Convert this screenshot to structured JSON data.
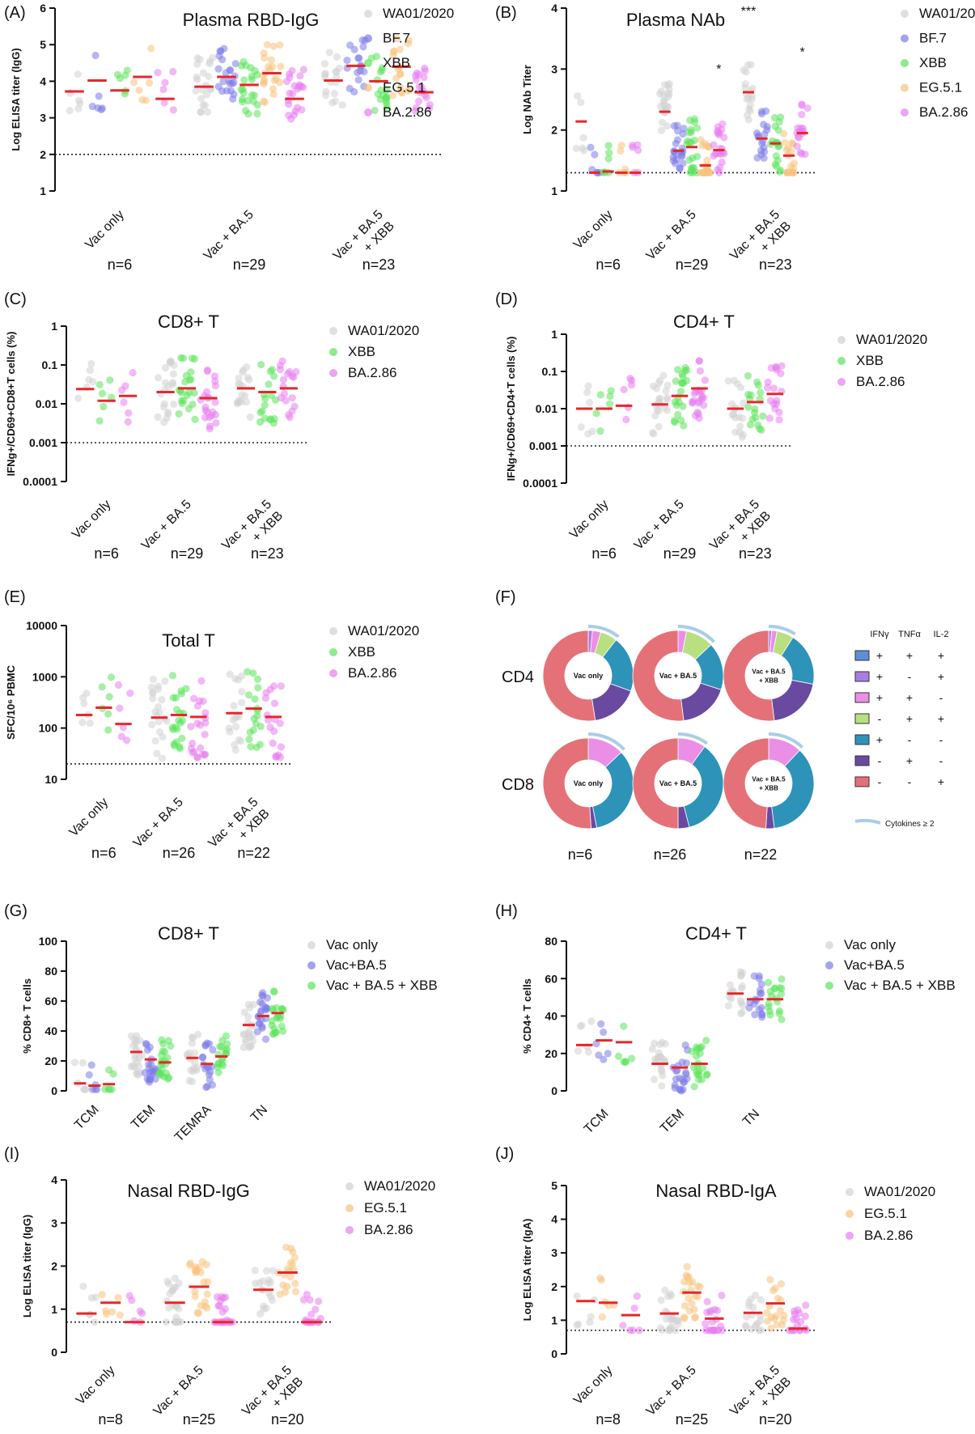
{
  "colors": {
    "WA01/2020": "#d2d2d2",
    "BF.7": "#7b7be8",
    "XBB": "#5be35b",
    "EG.5.1": "#f8c27d",
    "BA.2.86": "#e77ef0",
    "Vac only": "#d2d2d2",
    "Vac+BA.5": "#7b7be8",
    "Vac + BA.5 + XBB": "#5be35b",
    "median": "#e8262a",
    "pie_neg_pos_neg": "#e47177",
    "pie_ifng_only": "#2e93b8",
    "pie_tnfa_only": "#6a4aa0",
    "pie_ifng_tnfa": "#eb8fe6",
    "pie_tnfa_il2": "#b8df80",
    "pie_ifng_il2": "#a97ee0",
    "pie_triple": "#5c8fd6",
    "poly_arc": "#a9cdea"
  },
  "chart_data": [
    {
      "panel": "(A)",
      "type": "scatter",
      "title": "Plasma RBD-IgG",
      "ylabel": "Log ELISA titer (IgG)",
      "scale": "linear",
      "ylim": [
        1,
        6
      ],
      "ticks": [
        "1",
        "2",
        "3",
        "4",
        "5",
        "6"
      ],
      "tickvals": [
        1,
        2,
        3,
        4,
        5,
        6
      ],
      "baseline": 2,
      "groups": [
        [
          "Vac only"
        ],
        [
          "Vac + BA.5"
        ],
        [
          "Vac + BA.5",
          "+ XBB"
        ]
      ],
      "ns": [
        "n=6",
        "n=29",
        "n=23"
      ],
      "series": [
        {
          "name": "WA01/2020",
          "medians": [
            3.72,
            3.85,
            4.02
          ]
        },
        {
          "name": "BF.7",
          "medians": [
            4.02,
            4.12,
            4.42
          ]
        },
        {
          "name": "XBB",
          "medians": [
            3.75,
            3.9,
            4.0
          ]
        },
        {
          "name": "EG.5.1",
          "medians": [
            4.12,
            4.22,
            4.4
          ]
        },
        {
          "name": "BA.2.86",
          "medians": [
            3.52,
            3.52,
            3.7
          ]
        }
      ],
      "annotations": []
    },
    {
      "panel": "(B)",
      "type": "scatter",
      "title": "Plasma NAb",
      "ylabel": "Log NAb Titer",
      "scale": "linear",
      "ylim": [
        1,
        4
      ],
      "ticks": [
        "1",
        "2",
        "3",
        "4"
      ],
      "tickvals": [
        1,
        2,
        3,
        4
      ],
      "baseline": 1.3,
      "groups": [
        [
          "Vac only"
        ],
        [
          "Vac + BA.5"
        ],
        [
          "Vac + BA.5",
          "+ XBB"
        ]
      ],
      "ns": [
        "n=6",
        "n=29",
        "n=23"
      ],
      "series": [
        {
          "name": "WA01/2020",
          "medians": [
            2.14,
            2.3,
            2.62
          ]
        },
        {
          "name": "BF.7",
          "medians": [
            1.3,
            1.66,
            1.86
          ]
        },
        {
          "name": "XBB",
          "medians": [
            1.32,
            1.72,
            1.78
          ]
        },
        {
          "name": "EG.5.1",
          "medians": [
            1.3,
            1.42,
            1.58
          ]
        },
        {
          "name": "BA.2.86",
          "medians": [
            1.3,
            1.67,
            1.95
          ]
        }
      ],
      "annotations": [
        {
          "text": "*",
          "group": 1,
          "series": 4
        },
        {
          "text": "***",
          "group": 2,
          "series": 0
        },
        {
          "text": "*",
          "group": 2,
          "series": 4
        }
      ]
    },
    {
      "panel": "(C)",
      "type": "scatter",
      "title": "CD8+ T",
      "ylabel": "IFNg+/CD69+CD8+T cells (%)",
      "scale": "log",
      "ylim": [
        0.0001,
        1
      ],
      "ticks": [
        "0.0001",
        "0.001",
        "0.01",
        "0.1",
        "1"
      ],
      "tickvals": [
        0.0001,
        0.001,
        0.01,
        0.1,
        1
      ],
      "baseline": 0.001,
      "groups": [
        [
          "Vac only"
        ],
        [
          "Vac + BA.5"
        ],
        [
          "Vac + BA.5",
          "+ XBB"
        ]
      ],
      "ns": [
        "n=6",
        "n=29",
        "n=23"
      ],
      "series": [
        {
          "name": "WA01/2020",
          "medians": [
            0.024,
            0.02,
            0.025
          ]
        },
        {
          "name": "XBB",
          "medians": [
            0.012,
            0.025,
            0.02
          ]
        },
        {
          "name": "BA.2.86",
          "medians": [
            0.016,
            0.014,
            0.025
          ]
        }
      ],
      "annotations": []
    },
    {
      "panel": "(D)",
      "type": "scatter",
      "title": "CD4+ T",
      "ylabel": "IFNg+/CD69+CD4+T cells (%)",
      "scale": "log",
      "ylim": [
        0.0001,
        1
      ],
      "ticks": [
        "0.0001",
        "0.001",
        "0.01",
        "0.1",
        "1"
      ],
      "tickvals": [
        0.0001,
        0.001,
        0.01,
        0.1,
        1
      ],
      "baseline": 0.001,
      "groups": [
        [
          "Vac only"
        ],
        [
          "Vac + BA.5"
        ],
        [
          "Vac + BA.5",
          "+ XBB"
        ]
      ],
      "ns": [
        "n=6",
        "n=29",
        "n=23"
      ],
      "series": [
        {
          "name": "WA01/2020",
          "medians": [
            0.01,
            0.013,
            0.01
          ]
        },
        {
          "name": "XBB",
          "medians": [
            0.01,
            0.022,
            0.015
          ]
        },
        {
          "name": "BA.2.86",
          "medians": [
            0.012,
            0.035,
            0.025
          ]
        }
      ],
      "annotations": []
    },
    {
      "panel": "(E)",
      "type": "scatter",
      "title": "Total T",
      "ylabel": "SFC/10⁶ PBMC",
      "scale": "log",
      "ylim": [
        10,
        10000
      ],
      "ticks": [
        "10",
        "100",
        "1000",
        "10000"
      ],
      "tickvals": [
        10,
        100,
        1000,
        10000
      ],
      "baseline": 20,
      "groups": [
        [
          "Vac only"
        ],
        [
          "Vac + BA.5"
        ],
        [
          "Vac + BA.5",
          "+ XBB"
        ]
      ],
      "ns": [
        "n=6",
        "n=26",
        "n=22"
      ],
      "series": [
        {
          "name": "WA01/2020",
          "medians": [
            180,
            160,
            195
          ]
        },
        {
          "name": "XBB",
          "medians": [
            250,
            180,
            240
          ]
        },
        {
          "name": "BA.2.86",
          "medians": [
            120,
            165,
            165
          ]
        }
      ],
      "annotations": []
    },
    {
      "panel": "(G)",
      "type": "scatter",
      "title": "CD8+ T",
      "ylabel": "% CD8+ T cells",
      "scale": "linear",
      "ylim": [
        0,
        100
      ],
      "ticks": [
        "0",
        "20",
        "40",
        "60",
        "80",
        "100"
      ],
      "tickvals": [
        0,
        20,
        40,
        60,
        80,
        100
      ],
      "baseline": null,
      "groups": [
        [
          "TCM"
        ],
        [
          "TEM"
        ],
        [
          "TEMRA"
        ],
        [
          "TN"
        ]
      ],
      "ns": [],
      "series": [
        {
          "name": "Vac only",
          "medians": [
            5,
            26,
            22,
            44
          ]
        },
        {
          "name": "Vac+BA.5",
          "medians": [
            3.5,
            21,
            18,
            50
          ]
        },
        {
          "name": "Vac + BA.5 + XBB",
          "medians": [
            4.5,
            19,
            23,
            52
          ]
        }
      ],
      "annotations": []
    },
    {
      "panel": "(H)",
      "type": "scatter",
      "title": "CD4+ T",
      "ylabel": "% CD4+ T cells",
      "scale": "linear",
      "ylim": [
        0,
        80
      ],
      "ticks": [
        "0",
        "20",
        "40",
        "60",
        "80"
      ],
      "tickvals": [
        0,
        20,
        40,
        60,
        80
      ],
      "baseline": null,
      "groups": [
        [
          "TCM"
        ],
        [
          "TEM"
        ],
        [
          "TN"
        ]
      ],
      "ns": [],
      "series": [
        {
          "name": "Vac only",
          "medians": [
            24.5,
            14.5,
            52
          ]
        },
        {
          "name": "Vac+BA.5",
          "medians": [
            27,
            12.5,
            49
          ]
        },
        {
          "name": "Vac + BA.5 + XBB",
          "medians": [
            26,
            14.5,
            49
          ]
        }
      ],
      "annotations": []
    },
    {
      "panel": "(I)",
      "type": "scatter",
      "title": "Nasal RBD-IgG",
      "ylabel": "Log ELISA titer (IgG)",
      "scale": "linear",
      "ylim": [
        0,
        4
      ],
      "ticks": [
        "0",
        "1",
        "2",
        "3",
        "4"
      ],
      "tickvals": [
        0,
        1,
        2,
        3,
        4
      ],
      "baseline": 0.7,
      "groups": [
        [
          "Vac only"
        ],
        [
          "Vac + BA.5"
        ],
        [
          "Vac + BA.5",
          "+ XBB"
        ]
      ],
      "ns": [
        "n=8",
        "n=25",
        "n=20"
      ],
      "series": [
        {
          "name": "WA01/2020",
          "medians": [
            0.9,
            1.15,
            1.45
          ]
        },
        {
          "name": "EG.5.1",
          "medians": [
            1.15,
            1.52,
            1.85
          ]
        },
        {
          "name": "BA.2.86",
          "medians": [
            0.7,
            0.7,
            0.7
          ]
        }
      ],
      "annotations": []
    },
    {
      "panel": "(J)",
      "type": "scatter",
      "title": "Nasal RBD-IgA",
      "ylabel": "Log ELISA titer (IgA)",
      "scale": "linear",
      "ylim": [
        0,
        5
      ],
      "ticks": [
        "0",
        "1",
        "2",
        "3",
        "4",
        "5"
      ],
      "tickvals": [
        0,
        1,
        2,
        3,
        4,
        5
      ],
      "baseline": 0.7,
      "groups": [
        [
          "Vac only"
        ],
        [
          "Vac + BA.5"
        ],
        [
          "Vac + BA.5",
          "+ XBB"
        ]
      ],
      "ns": [
        "n=8",
        "n=25",
        "n=20"
      ],
      "series": [
        {
          "name": "WA01/2020",
          "medians": [
            1.57,
            1.2,
            1.22
          ]
        },
        {
          "name": "EG.5.1",
          "medians": [
            1.52,
            1.82,
            1.5
          ]
        },
        {
          "name": "BA.2.86",
          "medians": [
            1.15,
            1.05,
            0.75
          ]
        }
      ],
      "annotations": []
    },
    {
      "panel": "(F)",
      "type": "pie",
      "rows": [
        "CD4",
        "CD8"
      ],
      "columns": [
        [
          "Vac only"
        ],
        [
          "Vac + BA.5"
        ],
        [
          "Vac + BA.5",
          "+ XBB"
        ]
      ],
      "ns": [
        "n=6",
        "n=26",
        "n=22"
      ],
      "legend_headers": [
        "IFNγ",
        "TNFα",
        "IL-2"
      ],
      "categories": [
        {
          "key": "pie_triple",
          "signs": [
            "+",
            "+",
            "+"
          ]
        },
        {
          "key": "pie_ifng_il2",
          "signs": [
            "+",
            "-",
            "+"
          ]
        },
        {
          "key": "pie_ifng_tnfa",
          "signs": [
            "+",
            "+",
            "-"
          ]
        },
        {
          "key": "pie_tnfa_il2",
          "signs": [
            "-",
            "+",
            "+"
          ]
        },
        {
          "key": "pie_ifng_only",
          "signs": [
            "+",
            "-",
            "-"
          ]
        },
        {
          "key": "pie_tnfa_only",
          "signs": [
            "-",
            "+",
            "-"
          ]
        },
        {
          "key": "pie_neg_pos_neg",
          "signs": [
            "-",
            "-",
            "+"
          ]
        }
      ],
      "poly_label": "Cytokines ≥ 2",
      "donuts": [
        {
          "row": 0,
          "col": 0,
          "values": [
            0,
            1.5,
            3,
            6,
            20,
            17,
            52.5
          ]
        },
        {
          "row": 0,
          "col": 1,
          "values": [
            0,
            0,
            3,
            10,
            17,
            18,
            52
          ]
        },
        {
          "row": 0,
          "col": 2,
          "values": [
            0,
            1,
            2,
            6,
            19,
            20,
            52
          ]
        },
        {
          "row": 1,
          "col": 0,
          "values": [
            0,
            0,
            13,
            0,
            34,
            2,
            51
          ]
        },
        {
          "row": 1,
          "col": 1,
          "values": [
            0,
            0,
            10,
            0,
            36,
            4,
            50
          ]
        },
        {
          "row": 1,
          "col": 2,
          "values": [
            0,
            0,
            12,
            0,
            36,
            3,
            49
          ]
        }
      ]
    }
  ]
}
